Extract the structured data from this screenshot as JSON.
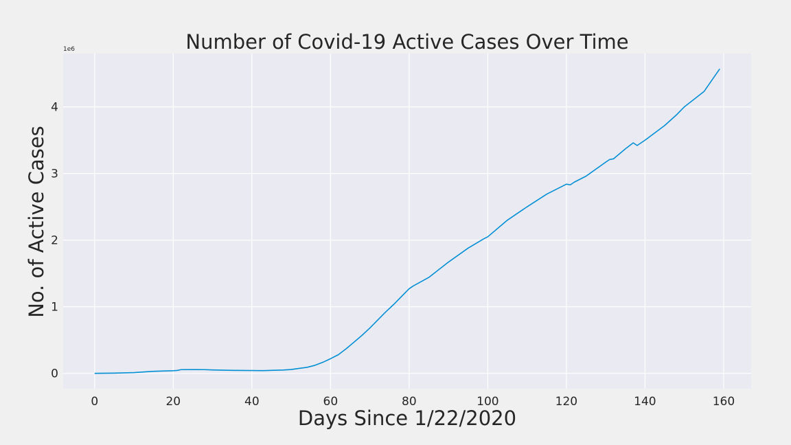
{
  "chart_data": {
    "type": "line",
    "title": "Number of Covid-19 Active Cases Over Time",
    "xlabel": "Days Since 1/22/2020",
    "ylabel": "No. of Active Cases",
    "y_offset_text": "1e6",
    "xlim": [
      -8,
      167
    ],
    "ylim": [
      -0.23,
      4.8
    ],
    "xticks": [
      0,
      20,
      40,
      60,
      80,
      100,
      120,
      140,
      160
    ],
    "yticks": [
      0,
      1,
      2,
      3,
      4
    ],
    "grid": true,
    "colors": {
      "background": "#f0f0f0",
      "plot_area": "#eaeaf2",
      "grid": "#ffffff",
      "line": "#008fd5"
    },
    "series": [
      {
        "x": [
          0,
          5,
          10,
          15,
          20,
          21,
          22,
          25,
          28,
          30,
          35,
          40,
          43,
          45,
          48,
          50,
          52,
          54,
          56,
          58,
          60,
          62,
          64,
          66,
          68,
          70,
          72,
          74,
          76,
          78,
          80,
          81,
          85,
          90,
          95,
          99,
          100,
          105,
          110,
          115,
          120,
          121,
          122,
          125,
          130,
          131,
          132,
          135,
          137,
          138,
          140,
          145,
          148,
          150,
          155,
          159
        ],
        "y": [
          0.0,
          0.004,
          0.012,
          0.031,
          0.04,
          0.044,
          0.056,
          0.057,
          0.056,
          0.052,
          0.045,
          0.042,
          0.041,
          0.045,
          0.05,
          0.058,
          0.075,
          0.09,
          0.12,
          0.165,
          0.22,
          0.28,
          0.37,
          0.47,
          0.57,
          0.68,
          0.8,
          0.92,
          1.03,
          1.15,
          1.27,
          1.31,
          1.44,
          1.67,
          1.88,
          2.02,
          2.05,
          2.3,
          2.5,
          2.69,
          2.84,
          2.83,
          2.87,
          2.96,
          3.17,
          3.21,
          3.22,
          3.37,
          3.46,
          3.42,
          3.5,
          3.72,
          3.88,
          4.0,
          4.23,
          4.57
        ]
      }
    ]
  }
}
